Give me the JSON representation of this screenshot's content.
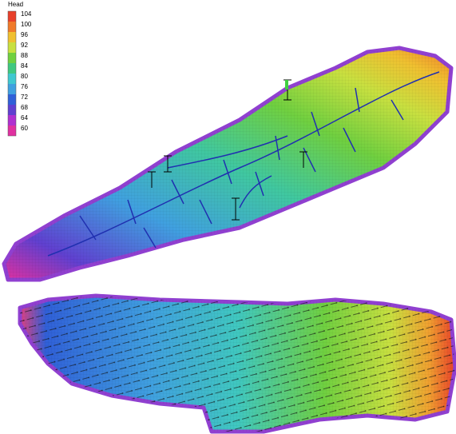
{
  "legend": {
    "title": "Head",
    "items": [
      {
        "value": 104,
        "color": "#e8402a"
      },
      {
        "value": 100,
        "color": "#f07a2a"
      },
      {
        "value": 96,
        "color": "#f0c030"
      },
      {
        "value": 92,
        "color": "#c8e040"
      },
      {
        "value": 88,
        "color": "#70d040"
      },
      {
        "value": 84,
        "color": "#40c880"
      },
      {
        "value": 80,
        "color": "#40c8d0"
      },
      {
        "value": 76,
        "color": "#40a0e0"
      },
      {
        "value": 72,
        "color": "#3060d8"
      },
      {
        "value": 68,
        "color": "#6040d0"
      },
      {
        "value": 64,
        "color": "#b030d0"
      },
      {
        "value": 60,
        "color": "#e030a0"
      }
    ]
  }
}
